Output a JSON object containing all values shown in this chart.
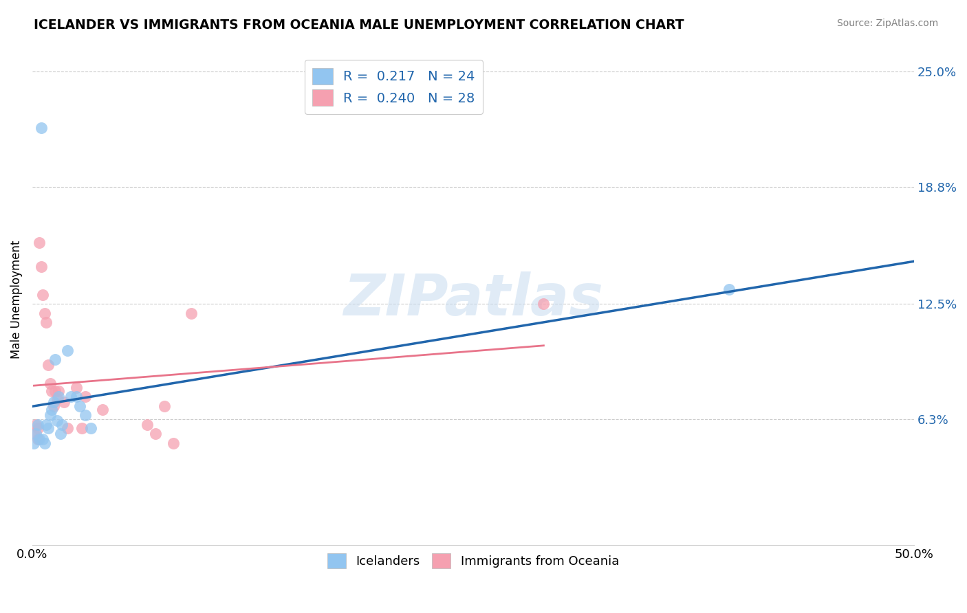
{
  "title": "ICELANDER VS IMMIGRANTS FROM OCEANIA MALE UNEMPLOYMENT CORRELATION CHART",
  "source": "Source: ZipAtlas.com",
  "ylabel": "Male Unemployment",
  "xlim": [
    0.0,
    0.5
  ],
  "ylim": [
    -0.005,
    0.26
  ],
  "yticks": [
    0.063,
    0.125,
    0.188,
    0.25
  ],
  "ytick_labels": [
    "6.3%",
    "12.5%",
    "18.8%",
    "25.0%"
  ],
  "xticks": [
    0.0,
    0.1,
    0.2,
    0.3,
    0.4,
    0.5
  ],
  "xtick_labels": [
    "0.0%",
    "",
    "",
    "",
    "",
    "50.0%"
  ],
  "icelanders_color": "#92C5F0",
  "immigrants_color": "#F5A0B0",
  "line_blue": "#2166AC",
  "line_pink": "#E8748A",
  "background_color": "#FFFFFF",
  "grid_color": "#CCCCCC",
  "icelanders_x": [
    0.001,
    0.002,
    0.003,
    0.004,
    0.005,
    0.006,
    0.007,
    0.008,
    0.009,
    0.01,
    0.011,
    0.012,
    0.013,
    0.014,
    0.015,
    0.016,
    0.017,
    0.02,
    0.022,
    0.025,
    0.027,
    0.03,
    0.033,
    0.395
  ],
  "icelanders_y": [
    0.05,
    0.055,
    0.06,
    0.052,
    0.22,
    0.052,
    0.05,
    0.06,
    0.058,
    0.065,
    0.068,
    0.072,
    0.095,
    0.062,
    0.075,
    0.055,
    0.06,
    0.1,
    0.075,
    0.075,
    0.07,
    0.065,
    0.058,
    0.133
  ],
  "immigrants_x": [
    0.001,
    0.002,
    0.003,
    0.003,
    0.004,
    0.005,
    0.006,
    0.007,
    0.008,
    0.009,
    0.01,
    0.011,
    0.012,
    0.013,
    0.014,
    0.015,
    0.018,
    0.02,
    0.025,
    0.028,
    0.03,
    0.04,
    0.065,
    0.07,
    0.075,
    0.08,
    0.09,
    0.29
  ],
  "immigrants_y": [
    0.055,
    0.06,
    0.058,
    0.052,
    0.158,
    0.145,
    0.13,
    0.12,
    0.115,
    0.092,
    0.082,
    0.078,
    0.07,
    0.078,
    0.074,
    0.078,
    0.072,
    0.058,
    0.08,
    0.058,
    0.075,
    0.068,
    0.06,
    0.055,
    0.07,
    0.05,
    0.12,
    0.125
  ],
  "legend1_label": "R =  0.217   N = 24",
  "legend2_label": "R =  0.240   N = 28",
  "legend_label_ice": "Icelanders",
  "legend_label_imm": "Immigrants from Oceania",
  "watermark": "ZIPatlas"
}
